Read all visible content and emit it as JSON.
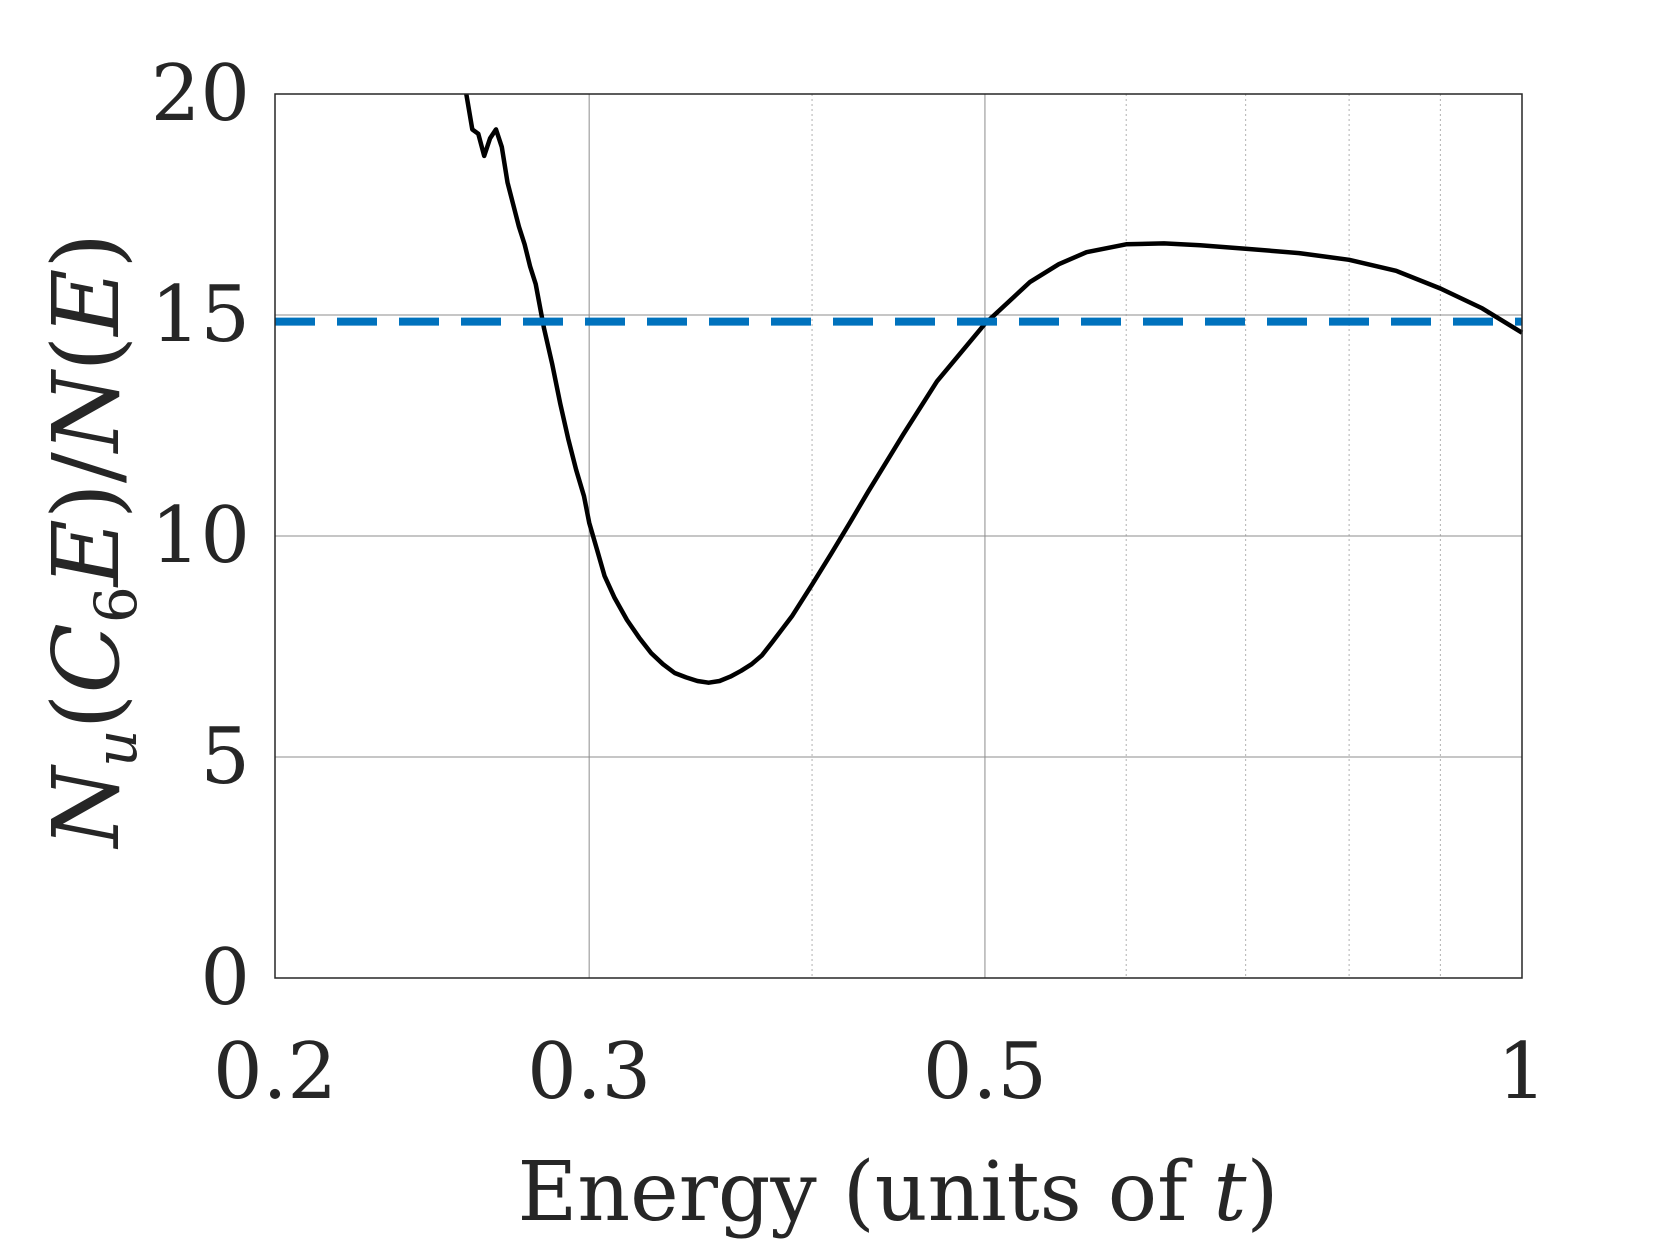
{
  "chart_data": {
    "type": "line",
    "title": "",
    "xlabel": "Energy (units of t)",
    "xlabel_parts": {
      "text": "Energy (units of ",
      "italic": "t",
      "close": ")"
    },
    "ylabel": "N_u(C_6 E)/N(E)",
    "ylabel_parts": {
      "N": "N",
      "sub_u": "u",
      "open": "(",
      "C": "C",
      "sub_6": "6",
      "E": "E",
      "mid": ")/",
      "N2": "N",
      "open2": "(",
      "E2": "E",
      "close": ")"
    },
    "xscale": "log",
    "xlim": [
      0.2,
      1
    ],
    "ylim": [
      0,
      20
    ],
    "grid": true,
    "xticks": [
      0.2,
      0.3,
      0.5,
      1
    ],
    "xtick_labels": [
      "0.2",
      "0.3",
      "0.5",
      "1"
    ],
    "x_minor_grid": [
      0.4,
      0.6,
      0.7,
      0.8,
      0.9
    ],
    "yticks": [
      0,
      5,
      10,
      15,
      20
    ],
    "ytick_labels": [
      "0",
      "5",
      "10",
      "15",
      "20"
    ],
    "series": [
      {
        "name": "ratio",
        "color": "#000000",
        "style": "solid",
        "x": [
          0.256,
          0.258,
          0.26,
          0.262,
          0.264,
          0.266,
          0.268,
          0.27,
          0.272,
          0.274,
          0.276,
          0.278,
          0.28,
          0.283,
          0.286,
          0.289,
          0.292,
          0.295,
          0.298,
          0.3,
          0.303,
          0.306,
          0.31,
          0.315,
          0.32,
          0.325,
          0.33,
          0.335,
          0.34,
          0.345,
          0.35,
          0.355,
          0.36,
          0.365,
          0.37,
          0.375,
          0.38,
          0.385,
          0.39,
          0.4,
          0.41,
          0.42,
          0.43,
          0.45,
          0.47,
          0.5,
          0.53,
          0.55,
          0.57,
          0.6,
          0.63,
          0.66,
          0.7,
          0.75,
          0.8,
          0.85,
          0.9,
          0.95,
          1.0
        ],
        "values": [
          20.0,
          19.2,
          19.1,
          18.6,
          19.0,
          19.2,
          18.8,
          18.0,
          17.5,
          17.0,
          16.6,
          16.1,
          15.7,
          14.7,
          13.9,
          13.0,
          12.2,
          11.5,
          10.9,
          10.3,
          9.7,
          9.1,
          8.6,
          8.1,
          7.7,
          7.35,
          7.1,
          6.9,
          6.8,
          6.72,
          6.68,
          6.72,
          6.82,
          6.95,
          7.1,
          7.3,
          7.6,
          7.9,
          8.2,
          8.9,
          9.6,
          10.3,
          11.0,
          12.3,
          13.5,
          14.8,
          15.75,
          16.15,
          16.42,
          16.6,
          16.62,
          16.58,
          16.5,
          16.4,
          16.25,
          16.0,
          15.6,
          15.15,
          14.6
        ]
      },
      {
        "name": "reference",
        "color": "#0072BD",
        "style": "dashed",
        "x": [
          0.2,
          1
        ],
        "values": [
          14.85,
          14.85
        ]
      }
    ]
  }
}
